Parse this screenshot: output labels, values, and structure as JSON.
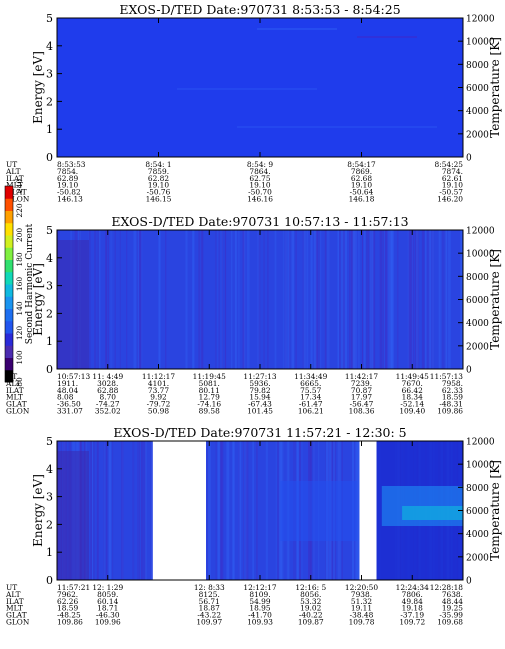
{
  "colorbar": {
    "label": "Second Harmonic Current",
    "ticks": [
      "80",
      "100",
      "120",
      "140",
      "160",
      "180",
      "200",
      "220",
      "240"
    ],
    "colors": [
      "#000000",
      "#3a0070",
      "#4b2bb0",
      "#2a2ad8",
      "#2255ee",
      "#1e6ff0",
      "#1a94f0",
      "#10b9e0",
      "#10d8b8",
      "#30e070",
      "#80f040",
      "#d0f020",
      "#ffe000",
      "#ffa000",
      "#ff5000",
      "#e00000"
    ]
  },
  "chart_data": [
    {
      "type": "heatmap",
      "title": "EXOS-D/TED   Date:970731   8:53:53 - 8:54:25",
      "ylabel": "Energy [eV]",
      "y2label": "Temperature [K]",
      "ylim": [
        0,
        5
      ],
      "y2lim": [
        0,
        12000
      ],
      "yticks": [
        "0",
        "1",
        "2",
        "3",
        "4",
        "5"
      ],
      "y2ticks": [
        "0",
        "2000",
        "4000",
        "6000",
        "8000",
        "10000",
        "12000"
      ],
      "background": "#1f3cec",
      "gaps": [],
      "ephemeris_labels": [
        "UT",
        "ALT",
        "ILAT",
        "MLT",
        "GLAT",
        "GLON"
      ],
      "columns": [
        [
          "8:53:53",
          "7854.",
          "62.89",
          "19.10",
          "-50.82",
          "146.13"
        ],
        [
          "8:54: 1",
          "7859.",
          "62.82",
          "19.10",
          "-50.76",
          "146.15"
        ],
        [
          "8:54: 9",
          "7864.",
          "62.75",
          "19.10",
          "-50.70",
          "146.16"
        ],
        [
          "8:54:17",
          "7869.",
          "62.68",
          "19.10",
          "-50.64",
          "146.18"
        ],
        [
          "8:54:25",
          "7874.",
          "62.61",
          "19.10",
          "-50.57",
          "146.20"
        ]
      ]
    },
    {
      "type": "heatmap",
      "title": "EXOS-D/TED   Date:970731   10:57:13 - 11:57:13",
      "ylabel": "Energy [eV]",
      "y2label": "Temperature [K]",
      "ylim": [
        0,
        5
      ],
      "y2lim": [
        0,
        12000
      ],
      "yticks": [
        "0",
        "1",
        "2",
        "3",
        "4",
        "5"
      ],
      "y2ticks": [
        "0",
        "2000",
        "4000",
        "6000",
        "8000",
        "10000",
        "12000"
      ],
      "background": "#2a44e0",
      "gaps": [],
      "ephemeris_labels": [
        "UT",
        "ALT",
        "ILAT",
        "MLT",
        "GLAT",
        "GLON"
      ],
      "columns": [
        [
          "10:57:13",
          "1911.",
          "48.04",
          "8.08",
          "-36.50",
          "331.07"
        ],
        [
          "11: 4:49",
          "3028.",
          "62.88",
          "8.70",
          "-74.27",
          "352.02"
        ],
        [
          "11:12:17",
          "4101.",
          "73.77",
          "9.92",
          "-79.72",
          "50.98"
        ],
        [
          "11:19:45",
          "5081.",
          "80.11",
          "12.79",
          "-74.16",
          "89.58"
        ],
        [
          "11:27:13",
          "5936.",
          "79.82",
          "15.94",
          "-67.43",
          "101.45"
        ],
        [
          "11:34:49",
          "6665.",
          "75.57",
          "17.34",
          "-61.47",
          "106.21"
        ],
        [
          "11:42:17",
          "7239.",
          "70.87",
          "17.97",
          "-56.47",
          "108.36"
        ],
        [
          "11:49:45",
          "7670.",
          "66.42",
          "18.34",
          "-52.14",
          "109.40"
        ],
        [
          "11:57:13",
          "7958.",
          "62.33",
          "18.59",
          "-48.31",
          "109.86"
        ]
      ]
    },
    {
      "type": "heatmap",
      "title": "EXOS-D/TED   Date:970731   11:57:21 - 12:30: 5",
      "ylabel": "Energy [eV]",
      "y2label": "Temperature [K]",
      "ylim": [
        0,
        5
      ],
      "y2lim": [
        0,
        12000
      ],
      "yticks": [
        "0",
        "1",
        "2",
        "3",
        "4",
        "5"
      ],
      "y2ticks": [
        "0",
        "2000",
        "4000",
        "6000",
        "8000",
        "10000",
        "12000"
      ],
      "background": "#2a44e0",
      "gaps": [
        [
          0.236,
          0.367
        ],
        [
          0.745,
          0.787
        ]
      ],
      "ephemeris_labels": [
        "UT",
        "ALT",
        "ILAT",
        "MLT",
        "GLAT",
        "GLON"
      ],
      "columns": [
        [
          "11:57:21",
          "7962.",
          "62.26",
          "18.59",
          "-48.25",
          "109.86"
        ],
        [
          "12: 1:29",
          "8059.",
          "60.14",
          "18.71",
          "-46.30",
          "109.96"
        ],
        [
          "",
          "",
          "",
          "",
          "",
          ""
        ],
        [
          "12: 8:33",
          "8125.",
          "56.71",
          "18.87",
          "-43.22",
          "109.97"
        ],
        [
          "12:12:17",
          "8109.",
          "54.99",
          "18.95",
          "-41.70",
          "109.93"
        ],
        [
          "12:16: 5",
          "8056.",
          "53.32",
          "19.02",
          "-40.22",
          "109.87"
        ],
        [
          "12:20:50",
          "7938.",
          "51.32",
          "19.11",
          "-38.48",
          "109.78"
        ],
        [
          "12:24:34",
          "7806.",
          "49.84",
          "19.18",
          "-37.19",
          "109.72"
        ],
        [
          "12:28:18",
          "7638.",
          "48.44",
          "19.25",
          "-35.99",
          "109.68"
        ]
      ]
    }
  ]
}
